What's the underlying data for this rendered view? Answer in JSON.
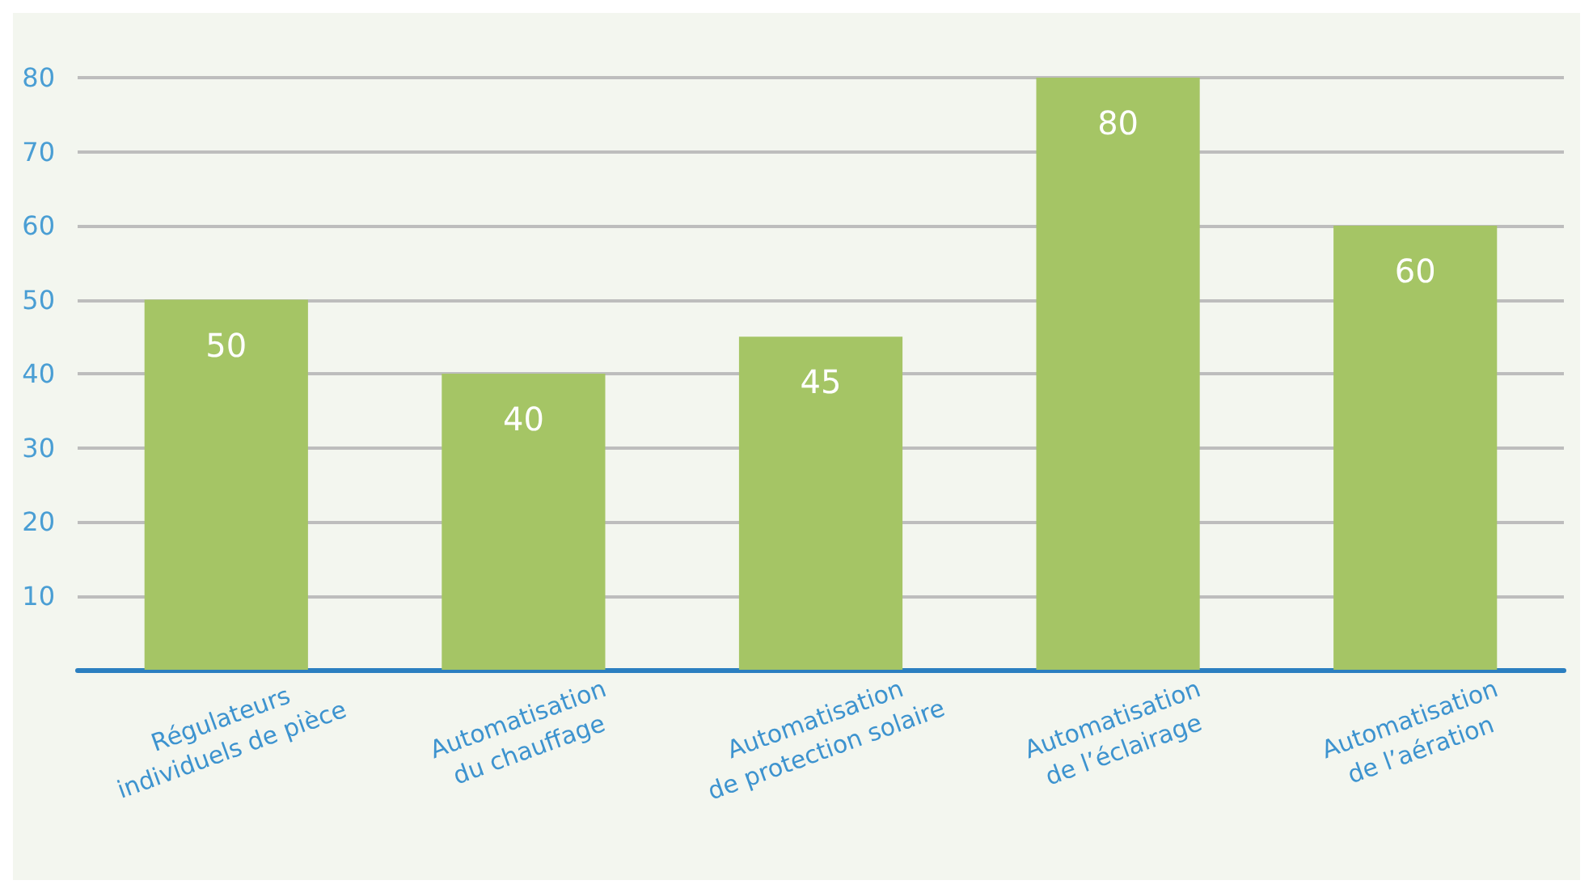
{
  "chart_data": {
    "type": "bar",
    "categories": [
      "Régulateurs\nindividuels de pièce",
      "Automatisation\ndu chauffage",
      "Automatisation\nde protection solaire",
      "Automatisation\nde l’éclairage",
      "Automatisation\nde l’aération"
    ],
    "values": [
      50,
      40,
      45,
      80,
      60
    ],
    "color": "#a5c565",
    "ylim": [
      0,
      80
    ],
    "yticks": [
      {
        "value": 0,
        "label": null
      },
      10,
      20,
      30,
      40,
      50,
      60,
      70,
      80
    ],
    "grid": "y",
    "data_labels": true
  }
}
